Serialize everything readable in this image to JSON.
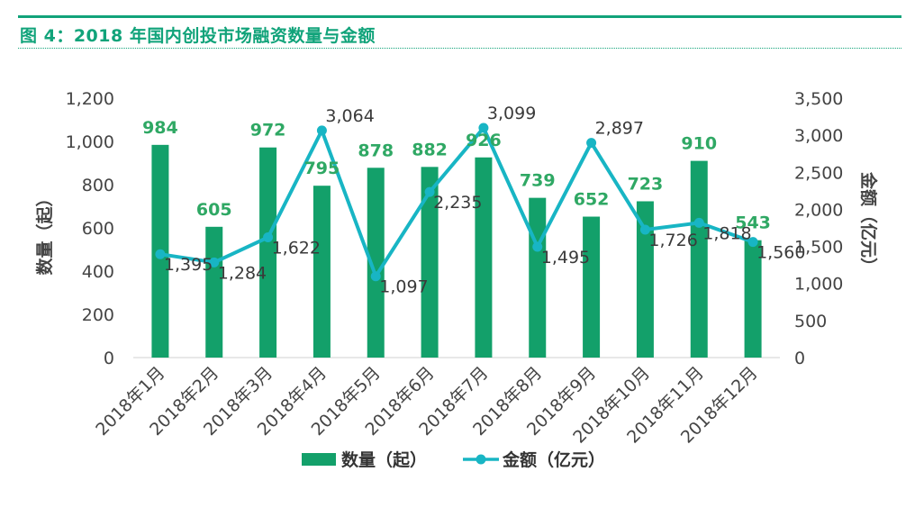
{
  "figure": {
    "title": "图 4：2018 年国内创投市场融资数量与金额"
  },
  "colors": {
    "accent": "#11a37a",
    "bar": "#13a06a",
    "line": "#18b5c4",
    "count_label": "#2fa864",
    "amount_label": "#3a3a3a"
  },
  "chart_data": {
    "type": "bar",
    "categories": [
      "2018年1月",
      "2018年2月",
      "2018年3月",
      "2018年4月",
      "2018年5月",
      "2018年6月",
      "2018年7月",
      "2018年8月",
      "2018年9月",
      "2018年10月",
      "2018年11月",
      "2018年12月"
    ],
    "series": [
      {
        "name": "数量（起）",
        "type": "bar",
        "axis": "left",
        "values": [
          984,
          605,
          972,
          795,
          878,
          882,
          926,
          739,
          652,
          723,
          910,
          543
        ],
        "labels": [
          "984",
          "605",
          "972",
          "795",
          "878",
          "882",
          "926",
          "739",
          "652",
          "723",
          "910",
          "543"
        ]
      },
      {
        "name": "金额（亿元）",
        "type": "line",
        "axis": "right",
        "values": [
          1395,
          1284,
          1622,
          3064,
          1097,
          2235,
          3099,
          1495,
          2897,
          1726,
          1818,
          1560
        ],
        "labels": [
          "1,395",
          "1,284",
          "1,622",
          "3,064",
          "1,097",
          "2,235",
          "3,099",
          "1,495",
          "2,897",
          "1,726",
          "1,818",
          "1,560"
        ]
      }
    ],
    "ylabel_left": "数量（起）",
    "ylabel_right": "金额（亿元）",
    "ylim_left": [
      0,
      1200
    ],
    "ylim_right": [
      0,
      3500
    ],
    "yticks_left": [
      "0",
      "200",
      "400",
      "600",
      "800",
      "1,000",
      "1,200"
    ],
    "yticks_right": [
      "0",
      "500",
      "1,000",
      "1,500",
      "2,000",
      "2,500",
      "3,000",
      "3,500"
    ],
    "grid": false,
    "legend_position": "bottom"
  }
}
